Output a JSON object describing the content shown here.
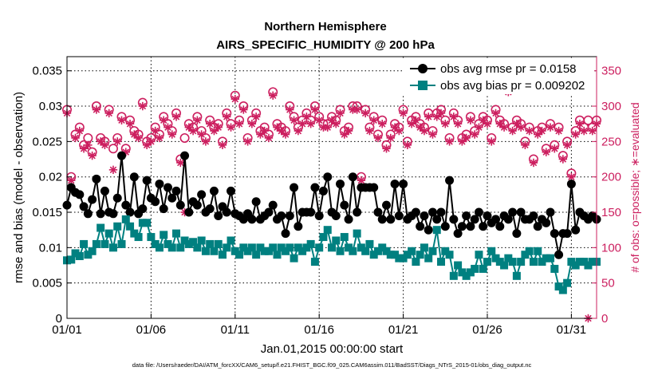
{
  "chart_data": {
    "type": "line",
    "title": "Northern Hemisphere",
    "subtitle": "AIRS_SPECIFIC_HUMIDITY @ 200 hPa",
    "xlabel": "Jan.01,2015 00:00:00 start",
    "ylabel": "rmse and bias (model - observation)",
    "ylabel_right": "# of obs: o=possible; ∗=evaluated",
    "xlim": [
      0,
      31.5
    ],
    "ylim": [
      0,
      0.037
    ],
    "ylim_right": [
      0,
      370
    ],
    "xtick_values": [
      0,
      5,
      10,
      15,
      20,
      25,
      30
    ],
    "xtick_labels": [
      "01/01",
      "01/06",
      "01/11",
      "01/16",
      "01/21",
      "01/26",
      "01/31"
    ],
    "ytick_labels": [
      "0",
      "0.005",
      "0.01",
      "0.015",
      "0.02",
      "0.025",
      "0.03",
      "0.035"
    ],
    "ytick_labels_right": [
      "0",
      "50",
      "100",
      "150",
      "200",
      "250",
      "300",
      "350"
    ],
    "grid": true,
    "legend_position": "top-right",
    "series": [
      {
        "name": "obs avg rmse pr = 0.0158",
        "axis": "left",
        "color": "#000000",
        "marker": "filled-circle",
        "x": [
          0.0,
          0.25,
          0.5,
          0.75,
          1.0,
          1.25,
          1.5,
          1.75,
          2.0,
          2.25,
          2.5,
          2.75,
          3.0,
          3.25,
          3.5,
          3.75,
          4.0,
          4.25,
          4.5,
          4.75,
          5.0,
          5.25,
          5.5,
          5.75,
          6.0,
          6.25,
          6.5,
          6.75,
          7.0,
          7.25,
          7.5,
          7.75,
          8.0,
          8.25,
          8.5,
          8.75,
          9.0,
          9.25,
          9.5,
          9.75,
          10.0,
          10.25,
          10.5,
          10.75,
          11.0,
          11.25,
          11.5,
          11.75,
          12.0,
          12.25,
          12.5,
          12.75,
          13.0,
          13.25,
          13.5,
          13.75,
          14.0,
          14.25,
          14.5,
          14.75,
          15.0,
          15.25,
          15.5,
          15.75,
          16.0,
          16.25,
          16.5,
          16.75,
          17.0,
          17.25,
          17.5,
          17.75,
          18.0,
          18.25,
          18.5,
          18.75,
          19.0,
          19.25,
          19.5,
          19.75,
          20.0,
          20.25,
          20.5,
          20.75,
          21.0,
          21.25,
          21.5,
          21.75,
          22.0,
          22.25,
          22.5,
          22.75,
          23.0,
          23.25,
          23.5,
          23.75,
          24.0,
          24.25,
          24.5,
          24.75,
          25.0,
          25.25,
          25.5,
          25.75,
          26.0,
          26.25,
          26.5,
          26.75,
          27.0,
          27.25,
          27.5,
          27.75,
          28.0,
          28.25,
          28.5,
          28.75,
          29.0,
          29.25,
          29.5,
          29.75,
          30.0,
          30.25,
          30.5,
          30.75,
          31.0,
          31.25,
          31.5
        ],
        "values": [
          0.016,
          0.0185,
          0.0178,
          0.0175,
          0.0158,
          0.0148,
          0.0168,
          0.0197,
          0.0148,
          0.018,
          0.015,
          0.0148,
          0.017,
          0.023,
          0.016,
          0.015,
          0.02,
          0.0148,
          0.0155,
          0.0195,
          0.017,
          0.0165,
          0.019,
          0.0155,
          0.0185,
          0.017,
          0.018,
          0.016,
          0.023,
          0.015,
          0.0165,
          0.016,
          0.0175,
          0.015,
          0.0155,
          0.018,
          0.0145,
          0.0158,
          0.015,
          0.018,
          0.0148,
          0.0145,
          0.014,
          0.0148,
          0.014,
          0.0165,
          0.014,
          0.0145,
          0.015,
          0.016,
          0.014,
          0.0145,
          0.012,
          0.0145,
          0.0185,
          0.013,
          0.015,
          0.015,
          0.015,
          0.0185,
          0.0145,
          0.018,
          0.02,
          0.015,
          0.0145,
          0.019,
          0.016,
          0.014,
          0.02,
          0.015,
          0.0185,
          0.0185,
          0.0185,
          0.0185,
          0.015,
          0.014,
          0.016,
          0.014,
          0.019,
          0.0145,
          0.019,
          0.014,
          0.0145,
          0.015,
          0.013,
          0.0145,
          0.0125,
          0.015,
          0.014,
          0.015,
          0.013,
          0.0195,
          0.014,
          0.012,
          0.013,
          0.0145,
          0.013,
          0.014,
          0.015,
          0.013,
          0.0145,
          0.0135,
          0.014,
          0.013,
          0.0145,
          0.014,
          0.015,
          0.012,
          0.015,
          0.014,
          0.014,
          0.0145,
          0.013,
          0.014,
          0.0135,
          0.015,
          0.012,
          0.009,
          0.012,
          0.012,
          0.019,
          0.0125,
          0.015,
          0.0145,
          0.014,
          0.0145,
          0.014
        ]
      },
      {
        "name": "obs avg bias pr = 0.009202",
        "axis": "left",
        "color": "#008080",
        "marker": "filled-square",
        "x": [
          0.0,
          0.25,
          0.5,
          0.75,
          1.0,
          1.25,
          1.5,
          1.75,
          2.0,
          2.25,
          2.5,
          2.75,
          3.0,
          3.25,
          3.5,
          3.75,
          4.0,
          4.25,
          4.5,
          4.75,
          5.0,
          5.25,
          5.5,
          5.75,
          6.0,
          6.25,
          6.5,
          6.75,
          7.0,
          7.25,
          7.5,
          7.75,
          8.0,
          8.25,
          8.5,
          8.75,
          9.0,
          9.25,
          9.5,
          9.75,
          10.0,
          10.25,
          10.5,
          10.75,
          11.0,
          11.25,
          11.5,
          11.75,
          12.0,
          12.25,
          12.5,
          12.75,
          13.0,
          13.25,
          13.5,
          13.75,
          14.0,
          14.25,
          14.5,
          14.75,
          15.0,
          15.25,
          15.5,
          15.75,
          16.0,
          16.25,
          16.5,
          16.75,
          17.0,
          17.25,
          17.5,
          17.75,
          18.0,
          18.25,
          18.5,
          18.75,
          19.0,
          19.25,
          19.5,
          19.75,
          20.0,
          20.25,
          20.5,
          20.75,
          21.0,
          21.25,
          21.5,
          21.75,
          22.0,
          22.25,
          22.5,
          22.75,
          23.0,
          23.25,
          23.5,
          23.75,
          24.0,
          24.25,
          24.5,
          24.75,
          25.0,
          25.25,
          25.5,
          25.75,
          26.0,
          26.25,
          26.5,
          26.75,
          27.0,
          27.25,
          27.5,
          27.75,
          28.0,
          28.25,
          28.5,
          28.75,
          29.0,
          29.25,
          29.5,
          29.75,
          30.0,
          30.25,
          30.5,
          30.75,
          31.0,
          31.25,
          31.5
        ],
        "values": [
          0.0082,
          0.0083,
          0.0092,
          0.0088,
          0.0105,
          0.009,
          0.0095,
          0.0105,
          0.0128,
          0.0105,
          0.012,
          0.01,
          0.013,
          0.0105,
          0.014,
          0.013,
          0.012,
          0.0115,
          0.0135,
          0.0135,
          0.0115,
          0.0105,
          0.01,
          0.0118,
          0.0105,
          0.01,
          0.012,
          0.01,
          0.011,
          0.0105,
          0.0108,
          0.01,
          0.011,
          0.0095,
          0.0105,
          0.0095,
          0.0105,
          0.009,
          0.01,
          0.011,
          0.0095,
          0.009,
          0.01,
          0.0095,
          0.01,
          0.009,
          0.01,
          0.0095,
          0.0095,
          0.01,
          0.009,
          0.01,
          0.0095,
          0.01,
          0.0085,
          0.01,
          0.0095,
          0.01,
          0.0105,
          0.008,
          0.01,
          0.0115,
          0.0125,
          0.01,
          0.011,
          0.0095,
          0.0115,
          0.01,
          0.0095,
          0.012,
          0.01,
          0.0095,
          0.0105,
          0.009,
          0.0095,
          0.01,
          0.0095,
          0.009,
          0.009,
          0.0085,
          0.0085,
          0.009,
          0.0095,
          0.008,
          0.009,
          0.01,
          0.0085,
          0.0095,
          0.0125,
          0.008,
          0.0095,
          0.009,
          0.006,
          0.0075,
          0.0065,
          0.006,
          0.0065,
          0.007,
          0.009,
          0.007,
          0.008,
          0.0095,
          0.0085,
          0.008,
          0.0075,
          0.0085,
          0.008,
          0.006,
          0.008,
          0.009,
          0.0095,
          0.008,
          0.0095,
          0.008,
          0.0085,
          0.0085,
          0.007,
          0.0045,
          0.004,
          0.005,
          0.008,
          0.0075,
          0.008,
          0.008,
          0.0075,
          0.008,
          0.008
        ]
      },
      {
        "name": "possible",
        "axis": "right",
        "color": "#cc1f5f",
        "marker": "open-circle",
        "x": [
          0.0,
          0.25,
          0.5,
          0.75,
          1.0,
          1.25,
          1.5,
          1.75,
          2.0,
          2.25,
          2.5,
          2.75,
          3.0,
          3.25,
          3.5,
          3.75,
          4.0,
          4.25,
          4.5,
          4.75,
          5.0,
          5.25,
          5.5,
          5.75,
          6.0,
          6.25,
          6.5,
          6.75,
          7.0,
          7.25,
          7.5,
          7.75,
          8.0,
          8.25,
          8.5,
          8.75,
          9.0,
          9.25,
          9.5,
          9.75,
          10.0,
          10.25,
          10.5,
          10.75,
          11.0,
          11.25,
          11.5,
          11.75,
          12.0,
          12.25,
          12.5,
          12.75,
          13.0,
          13.25,
          13.5,
          13.75,
          14.0,
          14.25,
          14.5,
          14.75,
          15.0,
          15.25,
          15.5,
          15.75,
          16.0,
          16.25,
          16.5,
          16.75,
          17.0,
          17.25,
          17.5,
          17.75,
          18.0,
          18.25,
          18.5,
          18.75,
          19.0,
          19.25,
          19.5,
          19.75,
          20.0,
          20.25,
          20.5,
          20.75,
          21.0,
          21.25,
          21.5,
          21.75,
          22.0,
          22.25,
          22.5,
          22.75,
          23.0,
          23.25,
          23.5,
          23.75,
          24.0,
          24.25,
          24.5,
          24.75,
          25.0,
          25.25,
          25.5,
          25.75,
          26.0,
          26.25,
          26.5,
          26.75,
          27.0,
          27.25,
          27.5,
          27.75,
          28.0,
          28.25,
          28.5,
          28.75,
          29.0,
          29.25,
          29.5,
          29.75,
          30.0,
          30.25,
          30.5,
          30.75,
          31.0,
          31.25,
          31.5
        ],
        "values": [
          295,
          200,
          260,
          270,
          245,
          255,
          235,
          300,
          255,
          250,
          295,
          240,
          255,
          285,
          240,
          280,
          265,
          260,
          305,
          250,
          255,
          270,
          260,
          285,
          275,
          265,
          290,
          225,
          255,
          275,
          270,
          285,
          265,
          255,
          280,
          270,
          275,
          250,
          290,
          275,
          315,
          280,
          300,
          255,
          280,
          290,
          265,
          270,
          260,
          320,
          275,
          270,
          265,
          300,
          285,
          270,
          280,
          290,
          280,
          300,
          285,
          275,
          275,
          285,
          280,
          295,
          265,
          270,
          300,
          300,
          200,
          295,
          270,
          285,
          260,
          280,
          245,
          260,
          275,
          270,
          295,
          250,
          280,
          285,
          275,
          270,
          290,
          265,
          290,
          295,
          280,
          255,
          290,
          280,
          255,
          260,
          285,
          265,
          275,
          285,
          280,
          255,
          295,
          280,
          275,
          325,
          270,
          280,
          275,
          250,
          270,
          225,
          265,
          270,
          240,
          275,
          245,
          270,
          230,
          250,
          205,
          265,
          280,
          270,
          280,
          270,
          280
        ]
      },
      {
        "name": "evaluated",
        "axis": "right",
        "color": "#cc1f5f",
        "marker": "asterisk",
        "x": [
          0.0,
          0.25,
          0.5,
          0.75,
          1.0,
          1.25,
          1.5,
          1.75,
          2.0,
          2.25,
          2.5,
          2.75,
          3.0,
          3.25,
          3.5,
          3.75,
          4.0,
          4.25,
          4.5,
          4.75,
          5.0,
          5.25,
          5.5,
          5.75,
          6.0,
          6.25,
          6.5,
          6.75,
          7.0,
          7.25,
          7.5,
          7.75,
          8.0,
          8.25,
          8.5,
          8.75,
          9.0,
          9.25,
          9.5,
          9.75,
          10.0,
          10.25,
          10.5,
          10.75,
          11.0,
          11.25,
          11.5,
          11.75,
          12.0,
          12.25,
          12.5,
          12.75,
          13.0,
          13.25,
          13.5,
          13.75,
          14.0,
          14.25,
          14.5,
          14.75,
          15.0,
          15.25,
          15.5,
          15.75,
          16.0,
          16.25,
          16.5,
          16.75,
          17.0,
          17.25,
          17.5,
          17.75,
          18.0,
          18.25,
          18.5,
          18.75,
          19.0,
          19.25,
          19.5,
          19.75,
          20.0,
          20.25,
          20.5,
          20.75,
          21.0,
          21.25,
          21.5,
          21.75,
          22.0,
          22.25,
          22.5,
          22.75,
          23.0,
          23.25,
          23.5,
          23.75,
          24.0,
          24.25,
          24.5,
          24.75,
          25.0,
          25.25,
          25.5,
          25.75,
          26.0,
          26.25,
          26.5,
          26.75,
          27.0,
          27.25,
          27.5,
          27.75,
          28.0,
          28.25,
          28.5,
          28.75,
          29.0,
          29.25,
          29.5,
          29.75,
          30.0,
          30.25,
          30.5,
          30.75,
          31.0,
          31.25,
          31.5
        ],
        "values": [
          290,
          195,
          255,
          265,
          240,
          245,
          230,
          295,
          250,
          245,
          290,
          210,
          250,
          280,
          235,
          275,
          260,
          255,
          300,
          245,
          250,
          265,
          255,
          280,
          270,
          260,
          285,
          220,
          150,
          270,
          265,
          280,
          260,
          250,
          275,
          265,
          270,
          245,
          285,
          270,
          310,
          275,
          295,
          250,
          275,
          285,
          260,
          265,
          255,
          315,
          270,
          265,
          260,
          295,
          280,
          265,
          275,
          285,
          275,
          295,
          280,
          270,
          270,
          280,
          275,
          290,
          260,
          265,
          295,
          295,
          195,
          290,
          265,
          280,
          255,
          275,
          240,
          255,
          270,
          265,
          290,
          245,
          275,
          280,
          270,
          265,
          285,
          260,
          285,
          290,
          275,
          250,
          285,
          275,
          250,
          255,
          280,
          260,
          270,
          280,
          275,
          250,
          290,
          275,
          270,
          320,
          265,
          275,
          270,
          245,
          265,
          220,
          260,
          265,
          235,
          270,
          240,
          265,
          225,
          245,
          200,
          260,
          275,
          265,
          0,
          265,
          275
        ]
      }
    ]
  },
  "footnote": "data file: /Users/raeder/DAI/ATM_forcXX/CAM6_setup/f.e21.FHIST_BGC.f09_025.CAM6assim.011/BadSST/Diags_NTrS_2015-01/obs_diag_output.nc"
}
